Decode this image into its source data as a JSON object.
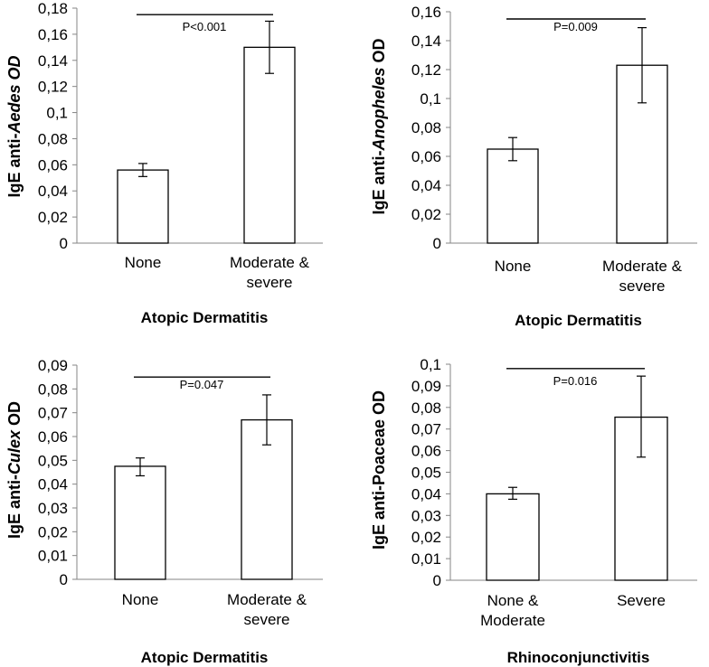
{
  "chart_data": [
    {
      "type": "bar",
      "ylabel_parts": [
        {
          "text": "IgE anti-",
          "italic": false
        },
        {
          "text": "Aedes",
          "italic": true
        },
        {
          "text": " OD",
          "italic": true
        }
      ],
      "xtitle": "Atopic Dermatitis",
      "categories": [
        [
          "None"
        ],
        [
          "Moderate &",
          "severe"
        ]
      ],
      "values": [
        0.056,
        0.15
      ],
      "error_low": [
        0.051,
        0.13
      ],
      "error_high": [
        0.061,
        0.17
      ],
      "ylim": [
        0,
        0.18
      ],
      "yticks": [
        "0",
        "0,02",
        "0,04",
        "0,06",
        "0,08",
        "0,1",
        "0,12",
        "0,14",
        "0,16",
        "0,18"
      ],
      "significance": {
        "label": "P<0.001",
        "y": 0.175
      }
    },
    {
      "type": "bar",
      "ylabel_parts": [
        {
          "text": "IgE anti-",
          "italic": false
        },
        {
          "text": "Anopheles",
          "italic": true
        },
        {
          "text": " OD",
          "italic": false
        }
      ],
      "xtitle": "Atopic Dermatitis",
      "categories": [
        [
          "None"
        ],
        [
          "Moderate &",
          "severe"
        ]
      ],
      "values": [
        0.065,
        0.123
      ],
      "error_low": [
        0.057,
        0.097
      ],
      "error_high": [
        0.073,
        0.149
      ],
      "ylim": [
        0,
        0.16
      ],
      "yticks": [
        "0",
        "0,02",
        "0,04",
        "0,06",
        "0,08",
        "0,1",
        "0,12",
        "0,14",
        "0,16"
      ],
      "significance": {
        "label": "P=0.009",
        "y": 0.155
      }
    },
    {
      "type": "bar",
      "ylabel_parts": [
        {
          "text": "IgE anti-",
          "italic": false
        },
        {
          "text": "Culex",
          "italic": true
        },
        {
          "text": " OD",
          "italic": false
        }
      ],
      "xtitle": "Atopic Dermatitis",
      "categories": [
        [
          "None"
        ],
        [
          "Moderate &",
          "severe"
        ]
      ],
      "values": [
        0.0475,
        0.067
      ],
      "error_low": [
        0.0435,
        0.0565
      ],
      "error_high": [
        0.051,
        0.0775
      ],
      "ylim": [
        0,
        0.09
      ],
      "yticks": [
        "0",
        "0,01",
        "0,02",
        "0,03",
        "0,04",
        "0,05",
        "0,06",
        "0,07",
        "0,08",
        "0,09"
      ],
      "significance": {
        "label": "P=0.047",
        "y": 0.085
      }
    },
    {
      "type": "bar",
      "ylabel_parts": [
        {
          "text": "IgE anti-Poaceae OD",
          "italic": false
        }
      ],
      "xtitle": "Rhinoconjunctivitis",
      "categories": [
        [
          "None &",
          "Moderate"
        ],
        [
          "Severe"
        ]
      ],
      "values": [
        0.04,
        0.0755
      ],
      "error_low": [
        0.0375,
        0.057
      ],
      "error_high": [
        0.043,
        0.0945
      ],
      "ylim": [
        0,
        0.1
      ],
      "yticks": [
        "0",
        "0,01",
        "0,02",
        "0,03",
        "0,04",
        "0,05",
        "0,06",
        "0,07",
        "0,08",
        "0,09",
        "0,1"
      ],
      "significance": {
        "label": "P=0.016",
        "y": 0.098
      }
    }
  ]
}
